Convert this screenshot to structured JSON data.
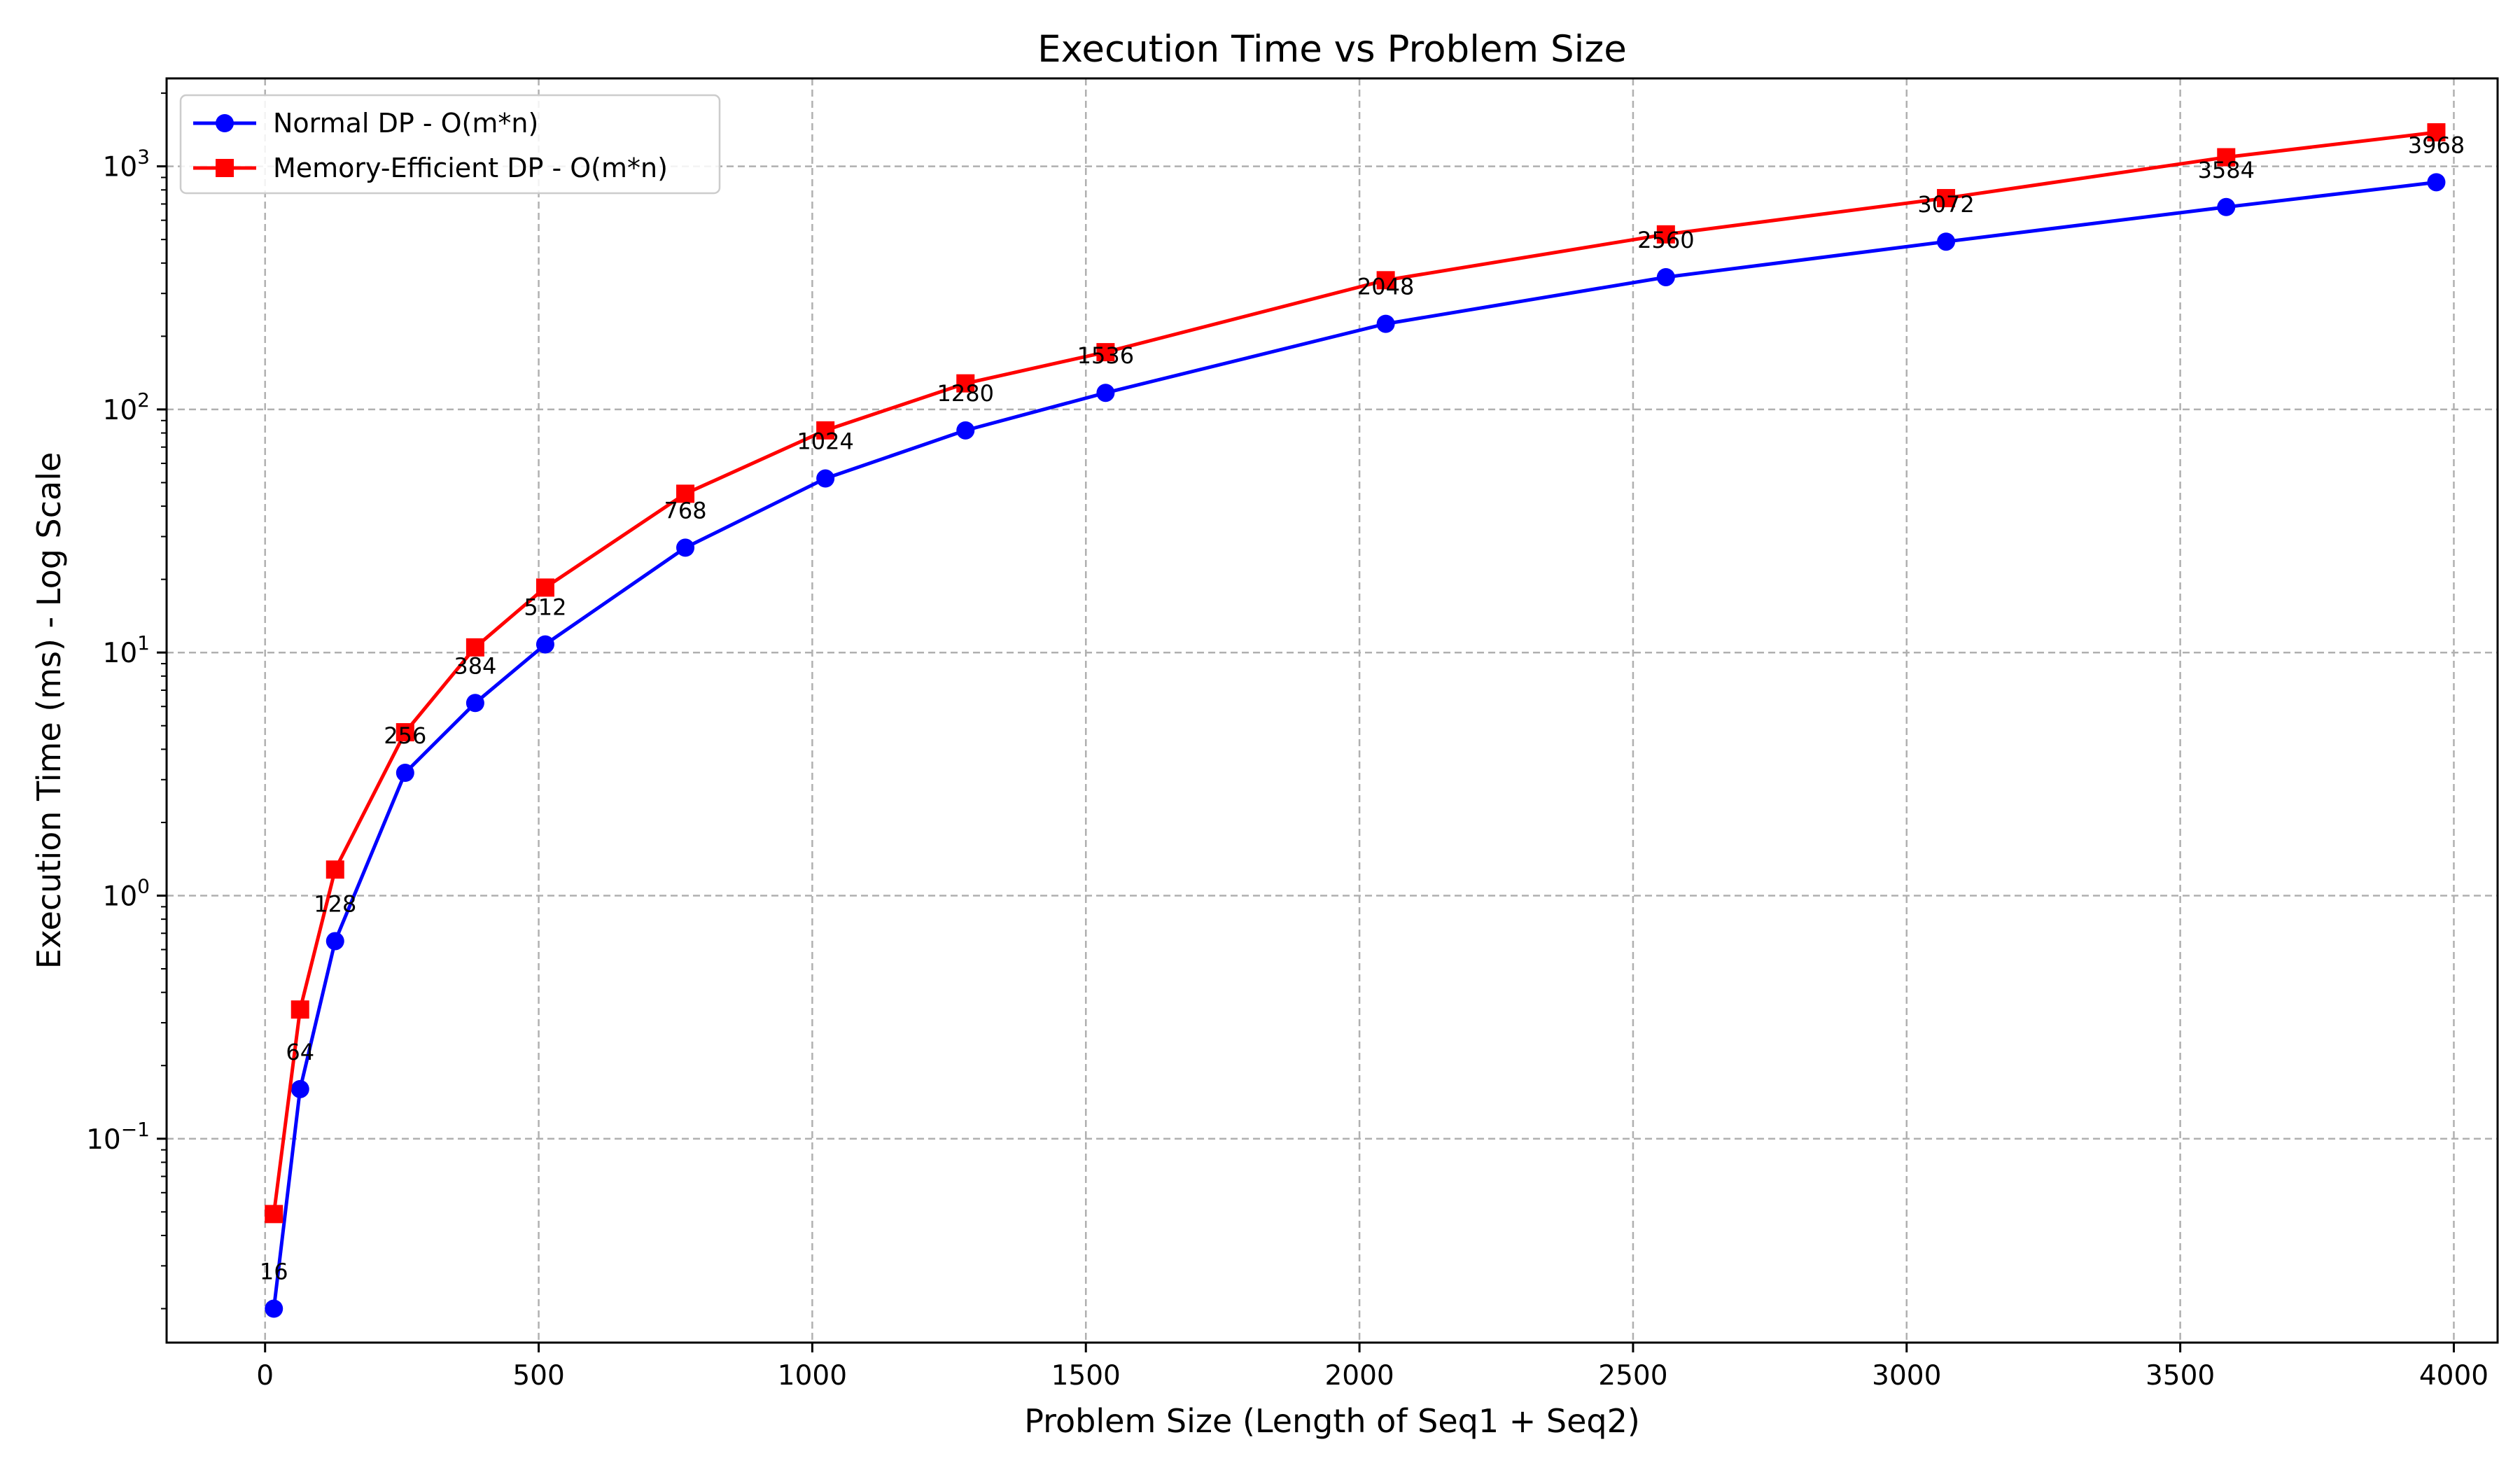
{
  "chart_data": {
    "type": "line",
    "title": "Execution Time vs Problem Size",
    "xlabel": "Problem Size (Length of Seq1 + Seq2)",
    "ylabel": "Execution Time (ms) - Log Scale",
    "x_scale": "linear",
    "y_scale": "log",
    "xlim": [
      -180,
      4080
    ],
    "ylim": [
      0.0145,
      2300
    ],
    "xticks": [
      0,
      500,
      1000,
      1500,
      2000,
      2500,
      3000,
      3500,
      4000
    ],
    "yticks": [
      {
        "base": "10",
        "exp": "−1",
        "value": 0.1
      },
      {
        "base": "10",
        "exp": "0",
        "value": 1
      },
      {
        "base": "10",
        "exp": "1",
        "value": 10
      },
      {
        "base": "10",
        "exp": "2",
        "value": 100
      },
      {
        "base": "10",
        "exp": "3",
        "value": 1000
      }
    ],
    "grid": true,
    "legend_position": "top-left",
    "x": [
      16,
      64,
      128,
      256,
      384,
      512,
      768,
      1024,
      1280,
      1536,
      2048,
      2560,
      3072,
      3584,
      3968
    ],
    "point_labels": [
      "16",
      "64",
      "128",
      "256",
      "384",
      "512",
      "768",
      "1024",
      "1280",
      "1536",
      "2048",
      "2560",
      "3072",
      "3584",
      "3968"
    ],
    "series": [
      {
        "name": "Normal DP - O(m*n)",
        "color": "#0000ff",
        "marker": "circle",
        "values": [
          0.02,
          0.16,
          0.65,
          3.2,
          6.2,
          10.8,
          27,
          52,
          82,
          117,
          225,
          350,
          490,
          680,
          860
        ]
      },
      {
        "name": "Memory-Efficient DP - O(m*n)",
        "color": "#ff0000",
        "marker": "square",
        "values": [
          0.049,
          0.34,
          1.28,
          4.7,
          10.5,
          18.5,
          45,
          82,
          128,
          172,
          340,
          525,
          740,
          1090,
          1380
        ]
      }
    ]
  }
}
